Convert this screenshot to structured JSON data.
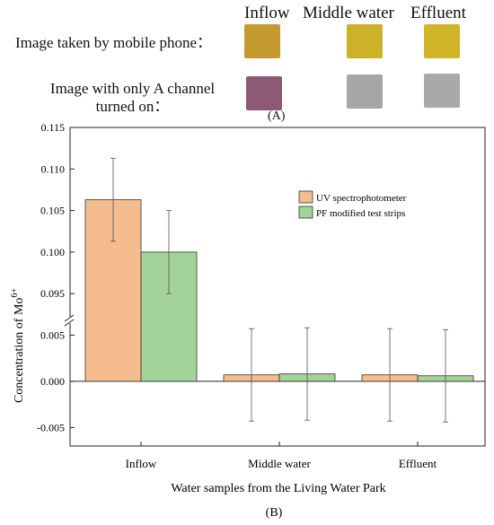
{
  "panel_a": {
    "columns": [
      "Inflow",
      "Middle water",
      "Effluent"
    ],
    "rows": [
      {
        "label": "Image taken by mobile phone：",
        "colors": [
          "#c49a2e",
          "#cdb128",
          "#d1b528"
        ]
      },
      {
        "label_line1": "Image with only A channel",
        "label_line2": "turned on：",
        "colors": [
          "#8c5a74",
          "#a6a6a6",
          "#a9a9a9"
        ]
      }
    ],
    "caption": "(A)"
  },
  "panel_b": {
    "caption": "(B)"
  },
  "chart_data": {
    "type": "bar",
    "categories": [
      "Inflow",
      "Middle water",
      "Effluent"
    ],
    "xlabel": "Water samples from the Living Water Park",
    "ylabel": "Concentration of Mo",
    "ylabel_superscript": "6+",
    "axis_break": {
      "lower_range": [
        -0.007,
        0.0065
      ],
      "upper_range": [
        0.092,
        0.115
      ]
    },
    "yticks_lower": [
      "-0.005",
      "0.000",
      "0.005"
    ],
    "yticks_upper": [
      "0.095",
      "0.100",
      "0.105",
      "0.110",
      "0.115"
    ],
    "legend_position": "top-right",
    "series": [
      {
        "name": "UV spectrophotometer",
        "color": "#f5bc8e",
        "values": [
          0.1063,
          0.0007,
          0.0007
        ],
        "errors": [
          0.005,
          0.005,
          0.005
        ]
      },
      {
        "name": "PF modified test strips",
        "color": "#a3d399",
        "values": [
          0.1,
          0.0008,
          0.0006
        ],
        "errors": [
          0.005,
          0.005,
          0.005
        ]
      }
    ]
  }
}
